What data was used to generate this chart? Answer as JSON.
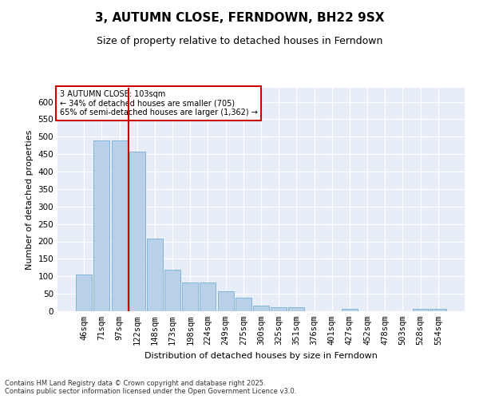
{
  "title": "3, AUTUMN CLOSE, FERNDOWN, BH22 9SX",
  "subtitle": "Size of property relative to detached houses in Ferndown",
  "xlabel": "Distribution of detached houses by size in Ferndown",
  "ylabel": "Number of detached properties",
  "footnote1": "Contains HM Land Registry data © Crown copyright and database right 2025.",
  "footnote2": "Contains public sector information licensed under the Open Government Licence v3.0.",
  "annotation_line1": "3 AUTUMN CLOSE: 103sqm",
  "annotation_line2": "← 34% of detached houses are smaller (705)",
  "annotation_line3": "65% of semi-detached houses are larger (1,362) →",
  "bar_color": "#b8d0e8",
  "bar_edge_color": "#7aafd4",
  "vline_color": "#cc0000",
  "annotation_box_edgecolor": "#cc0000",
  "background_color": "#e8eef8",
  "categories": [
    "46sqm",
    "71sqm",
    "97sqm",
    "122sqm",
    "148sqm",
    "173sqm",
    "198sqm",
    "224sqm",
    "249sqm",
    "275sqm",
    "300sqm",
    "325sqm",
    "351sqm",
    "376sqm",
    "401sqm",
    "427sqm",
    "452sqm",
    "478sqm",
    "503sqm",
    "528sqm",
    "554sqm"
  ],
  "values": [
    105,
    490,
    490,
    458,
    207,
    120,
    82,
    82,
    58,
    38,
    15,
    12,
    12,
    0,
    0,
    6,
    0,
    0,
    0,
    6,
    6
  ],
  "ylim": [
    0,
    640
  ],
  "yticks": [
    0,
    50,
    100,
    150,
    200,
    250,
    300,
    350,
    400,
    450,
    500,
    550,
    600
  ],
  "vline_x_index": 2.5,
  "title_fontsize": 11,
  "subtitle_fontsize": 9,
  "axis_label_fontsize": 8,
  "tick_fontsize": 7.5,
  "annotation_fontsize": 7,
  "footnote_fontsize": 6
}
